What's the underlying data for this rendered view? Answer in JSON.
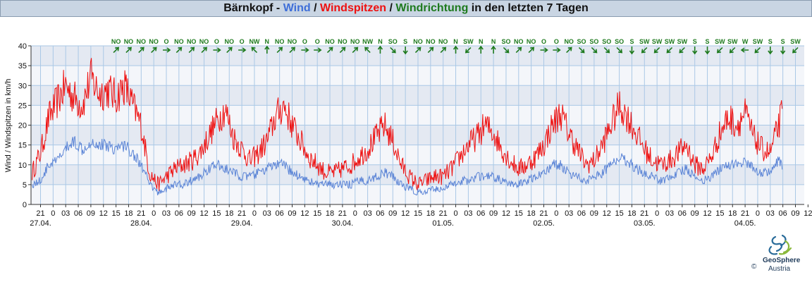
{
  "header": {
    "station": "Bärnkopf",
    "sep1": " - ",
    "wind_label": "Wind",
    "sep2": " / ",
    "gust_label": "Windspitzen",
    "sep3": " / ",
    "dir_label": "Windrichtung",
    "suffix": " in den letzten 7 Tagen"
  },
  "colors": {
    "wind": "#5b84d6",
    "gust": "#ee1111",
    "direction": "#1e7a1e",
    "band_dark": "#e4e9f2",
    "band_light": "#f4f6fa",
    "grid": "#aac8e6",
    "title_bg": "#c9d5e3"
  },
  "logo": {
    "name": "GeoSphere",
    "sub": "Austria",
    "copyright": "©"
  },
  "chart_data": {
    "type": "line",
    "ylabel": "Wind / Windspitzen in km/h",
    "ylim": [
      0,
      40
    ],
    "y_ticks": [
      0,
      5,
      10,
      15,
      20,
      25,
      30,
      35,
      40
    ],
    "x_unit_note": "hours since first tick (27.04. 21:00)",
    "x_range": [
      -3,
      180
    ],
    "hour_ticks": [
      "21",
      "0",
      "03",
      "06",
      "09",
      "12",
      "15",
      "18",
      "21",
      "0",
      "03",
      "06",
      "09",
      "12",
      "15",
      "18",
      "21",
      "0",
      "03",
      "06",
      "09",
      "12",
      "15",
      "18",
      "21",
      "0",
      "03",
      "06",
      "09",
      "12",
      "15",
      "18",
      "21",
      "0",
      "03",
      "06",
      "09",
      "12",
      "15",
      "18",
      "21",
      "0",
      "03",
      "06",
      "09",
      "12",
      "15",
      "18",
      "21",
      "0",
      "03",
      "06",
      "09",
      "12",
      "15",
      "18",
      "21",
      "0",
      "03",
      "06",
      "09",
      "12",
      "15",
      "18",
      "21",
      "0",
      "03",
      "06",
      "09"
    ],
    "date_labels": [
      {
        "label": "27.04.",
        "hour": 0
      },
      {
        "label": "28.04.",
        "hour": 24
      },
      {
        "label": "29.04.",
        "hour": 48
      },
      {
        "label": "30.04.",
        "hour": 72
      },
      {
        "label": "01.05.",
        "hour": 96
      },
      {
        "label": "02.05.",
        "hour": 120
      },
      {
        "label": "03.05.",
        "hour": 144
      },
      {
        "label": "04.05.",
        "hour": 168
      }
    ],
    "directions": [
      "NO",
      "NO",
      "NO",
      "NO",
      "O",
      "NO",
      "NO",
      "NO",
      "O",
      "NO",
      "O",
      "NW",
      "N",
      "NO",
      "NO",
      "O",
      "O",
      "NO",
      "NO",
      "NO",
      "NW",
      "N",
      "SO",
      "S",
      "NO",
      "NO",
      "NO",
      "N",
      "SW",
      "N",
      "N",
      "SO",
      "NO",
      "NO",
      "O",
      "O",
      "NO",
      "SO",
      "SO",
      "SO",
      "SO",
      "S",
      "SW",
      "SW",
      "SW",
      "SW",
      "S",
      "S",
      "SW",
      "SW",
      "W",
      "SW",
      "S",
      "S",
      "SW",
      "SW"
    ],
    "direction_step_hours": 3,
    "series": [
      {
        "name": "Windspitzen",
        "x": [
          -2,
          0,
          2,
          4,
          6,
          8,
          10,
          12,
          14,
          16,
          18,
          20,
          22,
          24,
          26,
          28,
          30,
          32,
          34,
          36,
          38,
          40,
          42,
          44,
          46,
          48,
          50,
          52,
          54,
          56,
          58,
          60,
          62,
          64,
          66,
          68,
          70,
          72,
          74,
          76,
          78,
          80,
          82,
          84,
          86,
          88,
          90,
          92,
          94,
          96,
          98,
          100,
          102,
          104,
          106,
          108,
          110,
          112,
          114,
          116,
          118,
          120,
          122,
          124,
          126,
          128,
          130,
          132,
          134,
          136,
          138,
          140,
          142,
          144,
          146,
          148,
          150,
          152,
          154,
          156,
          158,
          160,
          162,
          164,
          166,
          168,
          170,
          172,
          174,
          176,
          177
        ],
        "values": [
          8,
          13,
          22,
          26,
          30,
          27,
          25,
          32,
          28,
          29,
          27,
          30,
          25,
          20,
          8,
          5,
          7,
          9,
          10,
          11,
          13,
          17,
          21,
          24,
          17,
          14,
          11,
          13,
          16,
          22,
          25,
          20,
          16,
          12,
          10,
          8,
          8,
          9,
          10,
          12,
          14,
          17,
          20,
          16,
          10,
          7,
          5,
          6,
          7,
          7,
          9,
          12,
          15,
          17,
          20,
          18,
          14,
          11,
          9,
          10,
          12,
          15,
          20,
          23,
          18,
          14,
          10,
          11,
          15,
          20,
          25,
          22,
          18,
          14,
          11,
          10,
          11,
          13,
          15,
          10,
          9,
          12,
          18,
          22,
          20,
          23,
          17,
          14,
          13,
          20,
          24
        ]
      },
      {
        "name": "Wind",
        "x": [
          -2,
          0,
          2,
          4,
          6,
          8,
          10,
          12,
          14,
          16,
          18,
          20,
          22,
          24,
          26,
          28,
          30,
          32,
          34,
          36,
          38,
          40,
          42,
          44,
          46,
          48,
          50,
          52,
          54,
          56,
          58,
          60,
          62,
          64,
          66,
          68,
          70,
          72,
          74,
          76,
          78,
          80,
          82,
          84,
          86,
          88,
          90,
          92,
          94,
          96,
          98,
          100,
          102,
          104,
          106,
          108,
          110,
          112,
          114,
          116,
          118,
          120,
          122,
          124,
          126,
          128,
          130,
          132,
          134,
          136,
          138,
          140,
          142,
          144,
          146,
          148,
          150,
          152,
          154,
          156,
          158,
          160,
          162,
          164,
          166,
          168,
          170,
          172,
          174,
          176,
          177
        ],
        "values": [
          5,
          6,
          10,
          11,
          14,
          16,
          14,
          16,
          15,
          15,
          14,
          15,
          13,
          10,
          5,
          3,
          4,
          5,
          5,
          6,
          7,
          9,
          10,
          9,
          8,
          7,
          7,
          8,
          9,
          10,
          10,
          8,
          7,
          6,
          5,
          5,
          5,
          5,
          5,
          6,
          6,
          7,
          8,
          7,
          5,
          4,
          3,
          3,
          4,
          4,
          5,
          6,
          6,
          7,
          7,
          7,
          6,
          5,
          5,
          6,
          7,
          8,
          10,
          10,
          8,
          7,
          6,
          7,
          8,
          10,
          12,
          11,
          9,
          8,
          7,
          6,
          7,
          8,
          9,
          7,
          6,
          7,
          9,
          10,
          10,
          11,
          9,
          8,
          8,
          11,
          9
        ]
      }
    ]
  }
}
